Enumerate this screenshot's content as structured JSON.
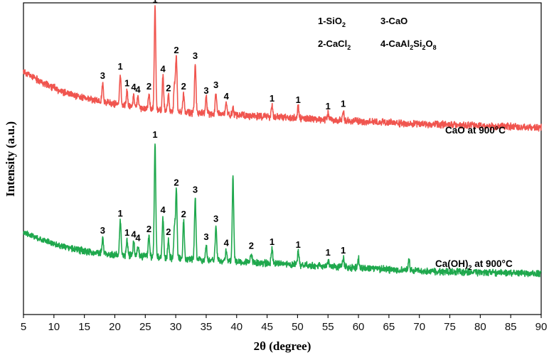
{
  "chart_data": {
    "type": "line",
    "title": "",
    "xlabel": "2θ (degree)",
    "ylabel": "Intensity (a.u.)",
    "xlim": [
      5,
      90
    ],
    "ylim": [
      0,
      1
    ],
    "x_ticks": [
      "5",
      "10",
      "15",
      "20",
      "25",
      "30",
      "35",
      "40",
      "45",
      "50",
      "55",
      "60",
      "65",
      "70",
      "75",
      "80",
      "85",
      "90"
    ],
    "grid": false,
    "legend_entries": [
      {
        "text": "1-SiO",
        "sub": "2",
        "tail": ""
      },
      {
        "text": "3-CaO",
        "sub": "",
        "tail": ""
      },
      {
        "text": "2-CaCl",
        "sub": "2",
        "tail": ""
      },
      {
        "text": "4-CaAl",
        "sub": "2",
        "tail": "Si",
        "sub2": "2",
        "tail2": "O",
        "sub3": "8"
      }
    ],
    "series": [
      {
        "name": "CaO at 900°C",
        "label_main": "CaO at 900°C",
        "color": "#f0554f",
        "baseline": [
          [
            5,
            0.78
          ],
          [
            8,
            0.745
          ],
          [
            12,
            0.71
          ],
          [
            16,
            0.69
          ],
          [
            20,
            0.675
          ],
          [
            25,
            0.66
          ],
          [
            30,
            0.65
          ],
          [
            40,
            0.64
          ],
          [
            50,
            0.63
          ],
          [
            60,
            0.62
          ],
          [
            70,
            0.612
          ],
          [
            80,
            0.606
          ],
          [
            90,
            0.6
          ]
        ],
        "peaks": [
          {
            "x": 18.0,
            "h": 0.06,
            "label": "3"
          },
          {
            "x": 20.9,
            "h": 0.1,
            "label": "1"
          },
          {
            "x": 22.0,
            "h": 0.05,
            "label": "1"
          },
          {
            "x": 23.1,
            "h": 0.04,
            "label": "4"
          },
          {
            "x": 23.8,
            "h": 0.035,
            "label": "4"
          },
          {
            "x": 25.6,
            "h": 0.05,
            "label": "2"
          },
          {
            "x": 26.6,
            "h": 0.33,
            "label": "1"
          },
          {
            "x": 27.9,
            "h": 0.11,
            "label": "4"
          },
          {
            "x": 28.8,
            "h": 0.05,
            "label": "2"
          },
          {
            "x": 29.8,
            "h": 0.09,
            "label": ""
          },
          {
            "x": 30.1,
            "h": 0.175,
            "label": "2"
          },
          {
            "x": 31.3,
            "h": 0.06,
            "label": "2"
          },
          {
            "x": 33.2,
            "h": 0.16,
            "label": "3"
          },
          {
            "x": 35.0,
            "h": 0.05,
            "label": "3"
          },
          {
            "x": 36.6,
            "h": 0.07,
            "label": "3"
          },
          {
            "x": 38.3,
            "h": 0.035,
            "label": "4"
          },
          {
            "x": 39.4,
            "h": 0.02,
            "label": ""
          },
          {
            "x": 45.8,
            "h": 0.035,
            "label": "1"
          },
          {
            "x": 50.1,
            "h": 0.035,
            "label": "1"
          },
          {
            "x": 55.0,
            "h": 0.02,
            "label": "1"
          },
          {
            "x": 57.5,
            "h": 0.03,
            "label": "1"
          }
        ]
      },
      {
        "name": "Ca(OH)2 at 900°C",
        "label_main": "Ca(OH)",
        "label_sub": "2",
        "label_tail": " at 900°C",
        "color": "#1fa84d",
        "baseline": [
          [
            5,
            0.265
          ],
          [
            8,
            0.24
          ],
          [
            12,
            0.215
          ],
          [
            16,
            0.2
          ],
          [
            20,
            0.192
          ],
          [
            25,
            0.186
          ],
          [
            30,
            0.18
          ],
          [
            40,
            0.17
          ],
          [
            50,
            0.16
          ],
          [
            60,
            0.15
          ],
          [
            70,
            0.14
          ],
          [
            80,
            0.135
          ],
          [
            90,
            0.13
          ]
        ],
        "peaks": [
          {
            "x": 18.0,
            "h": 0.05,
            "label": "3"
          },
          {
            "x": 20.9,
            "h": 0.11,
            "label": "1"
          },
          {
            "x": 22.0,
            "h": 0.05,
            "label": "1"
          },
          {
            "x": 23.1,
            "h": 0.045,
            "label": "4"
          },
          {
            "x": 23.8,
            "h": 0.035,
            "label": "4"
          },
          {
            "x": 25.6,
            "h": 0.065,
            "label": "2"
          },
          {
            "x": 26.6,
            "h": 0.37,
            "label": "1"
          },
          {
            "x": 27.9,
            "h": 0.13,
            "label": "4"
          },
          {
            "x": 28.8,
            "h": 0.06,
            "label": "2"
          },
          {
            "x": 29.8,
            "h": 0.1,
            "label": ""
          },
          {
            "x": 30.1,
            "h": 0.22,
            "label": "2"
          },
          {
            "x": 31.3,
            "h": 0.12,
            "label": "2"
          },
          {
            "x": 33.2,
            "h": 0.2,
            "label": "3"
          },
          {
            "x": 35.0,
            "h": 0.05,
            "label": "3"
          },
          {
            "x": 36.6,
            "h": 0.11,
            "label": "3"
          },
          {
            "x": 38.3,
            "h": 0.035,
            "label": "4"
          },
          {
            "x": 39.4,
            "h": 0.27,
            "label": ""
          },
          {
            "x": 42.4,
            "h": 0.03,
            "label": "2"
          },
          {
            "x": 45.8,
            "h": 0.045,
            "label": "1"
          },
          {
            "x": 50.1,
            "h": 0.04,
            "label": "1"
          },
          {
            "x": 55.0,
            "h": 0.02,
            "label": "1"
          },
          {
            "x": 57.5,
            "h": 0.03,
            "label": "1"
          },
          {
            "x": 60.0,
            "h": 0.03,
            "label": ""
          },
          {
            "x": 68.3,
            "h": 0.035,
            "label": ""
          }
        ]
      }
    ]
  }
}
